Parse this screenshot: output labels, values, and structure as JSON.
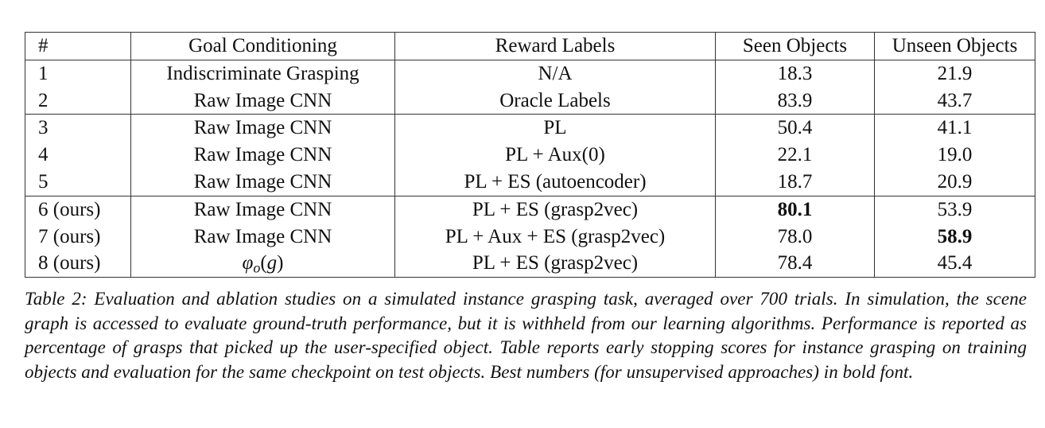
{
  "table": {
    "headers": [
      "#",
      "Goal Conditioning",
      "Reward Labels",
      "Seen Objects",
      "Unseen Objects"
    ],
    "rows": [
      [
        "1",
        "Indiscriminate Grasping",
        "N/A",
        "18.3",
        "21.9"
      ],
      [
        "2",
        "Raw Image CNN",
        "Oracle Labels",
        "83.9",
        "43.7"
      ],
      [
        "3",
        "Raw Image CNN",
        "PL",
        "50.4",
        "41.1"
      ],
      [
        "4",
        "Raw Image CNN",
        "PL + Aux(0)",
        "22.1",
        "19.0"
      ],
      [
        "5",
        "Raw Image CNN",
        "PL + ES (autoencoder)",
        "18.7",
        "20.9"
      ],
      [
        "6 (ours)",
        "Raw Image CNN",
        "PL + ES (grasp2vec)",
        "80.1",
        "53.9"
      ],
      [
        "7 (ours)",
        "Raw Image CNN",
        "PL + Aux + ES (grasp2vec)",
        "78.0",
        "58.9"
      ],
      [
        "8 (ours)",
        "φo(g)",
        "PL + ES (grasp2vec)",
        "78.4",
        "45.4"
      ]
    ],
    "group_starts": [
      2,
      5
    ],
    "bold_cells": [
      [
        5,
        3
      ],
      [
        6,
        4
      ]
    ]
  },
  "caption": "Table 2: Evaluation and ablation studies on a simulated instance grasping task, averaged over 700 trials. In simulation, the scene graph is accessed to evaluate ground-truth performance, but it is withheld from our learning algorithms. Performance is reported as percentage of grasps that picked up the user-specified object. Table reports early stopping scores for instance grasping on training objects and evaluation for the same checkpoint on test objects. Best numbers (for unsupervised approaches) in bold font."
}
